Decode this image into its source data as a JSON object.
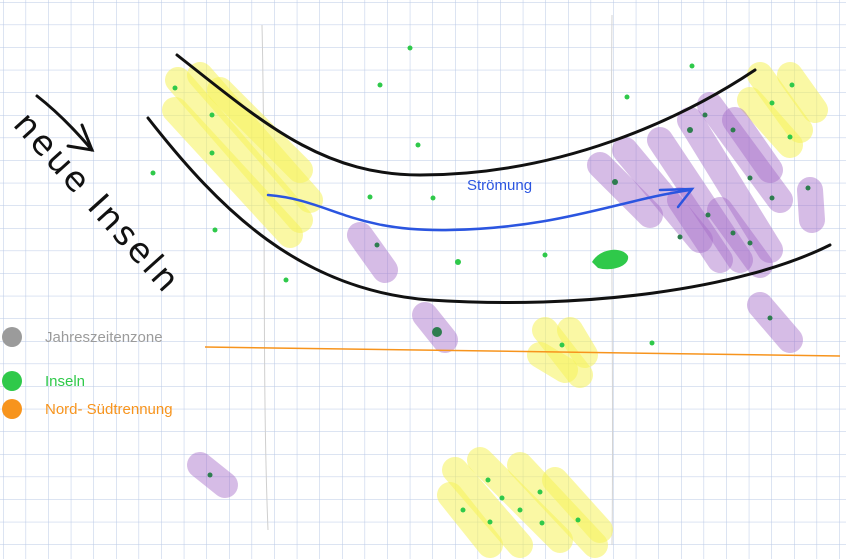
{
  "annotations": {
    "current": "Strömung",
    "handwritten": "neue Inseln"
  },
  "legend": [
    {
      "label": "Jahreszeitenzone",
      "color": "#9b9b9b"
    },
    {
      "label": "Inseln",
      "color": "#2fc94a"
    },
    {
      "label": "Nord- Südtrennung",
      "color": "#f7941d"
    }
  ]
}
